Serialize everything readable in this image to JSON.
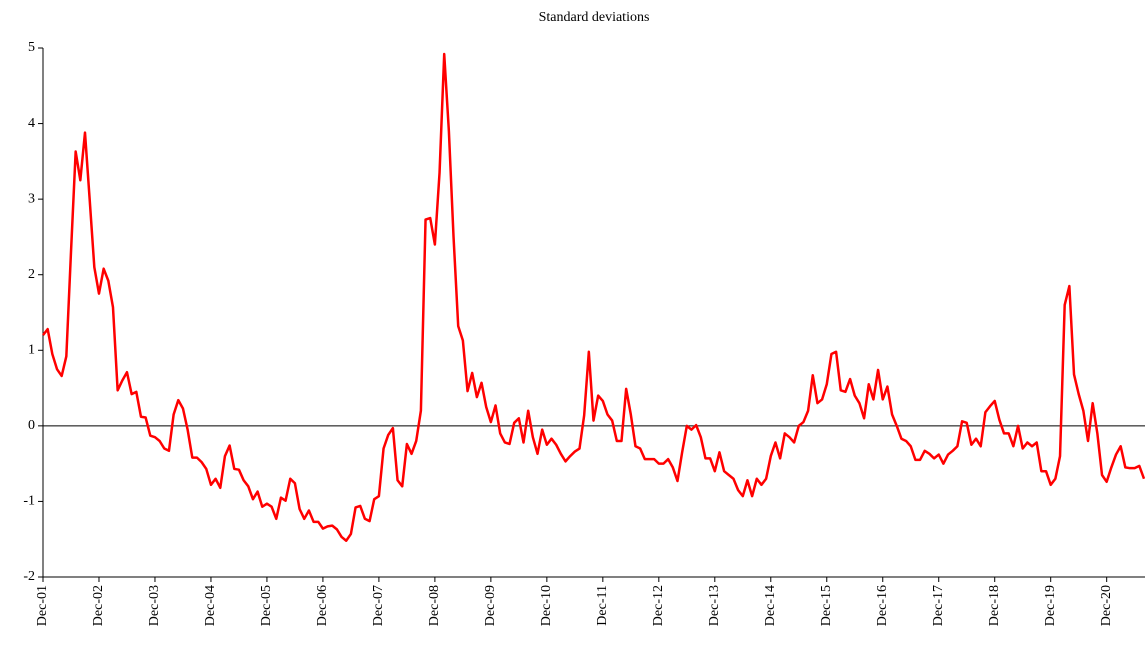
{
  "chart_data": {
    "type": "line",
    "title": "Standard deviations",
    "categories": [
      "Dec-01",
      null,
      null,
      null,
      null,
      null,
      null,
      null,
      null,
      null,
      null,
      null,
      "Dec-02",
      null,
      null,
      null,
      null,
      null,
      null,
      null,
      null,
      null,
      null,
      null,
      "Dec-03",
      null,
      null,
      null,
      null,
      null,
      null,
      null,
      null,
      null,
      null,
      null,
      "Dec-04",
      null,
      null,
      null,
      null,
      null,
      null,
      null,
      null,
      null,
      null,
      null,
      "Dec-05",
      null,
      null,
      null,
      null,
      null,
      null,
      null,
      null,
      null,
      null,
      null,
      "Dec-06",
      null,
      null,
      null,
      null,
      null,
      null,
      null,
      null,
      null,
      null,
      null,
      "Dec-07",
      null,
      null,
      null,
      null,
      null,
      null,
      null,
      null,
      null,
      null,
      null,
      "Dec-08",
      null,
      null,
      null,
      null,
      null,
      null,
      null,
      null,
      null,
      null,
      null,
      "Dec-09",
      null,
      null,
      null,
      null,
      null,
      null,
      null,
      null,
      null,
      null,
      null,
      "Dec-10",
      null,
      null,
      null,
      null,
      null,
      null,
      null,
      null,
      null,
      null,
      null,
      "Dec-11",
      null,
      null,
      null,
      null,
      null,
      null,
      null,
      null,
      null,
      null,
      null,
      "Dec-12",
      null,
      null,
      null,
      null,
      null,
      null,
      null,
      null,
      null,
      null,
      null,
      "Dec-13",
      null,
      null,
      null,
      null,
      null,
      null,
      null,
      null,
      null,
      null,
      null,
      "Dec-14",
      null,
      null,
      null,
      null,
      null,
      null,
      null,
      null,
      null,
      null,
      null,
      "Dec-15",
      null,
      null,
      null,
      null,
      null,
      null,
      null,
      null,
      null,
      null,
      null,
      "Dec-16",
      null,
      null,
      null,
      null,
      null,
      null,
      null,
      null,
      null,
      null,
      null,
      "Dec-17",
      null,
      null,
      null,
      null,
      null,
      null,
      null,
      null,
      null,
      null,
      null,
      "Dec-18",
      null,
      null,
      null,
      null,
      null,
      null,
      null,
      null,
      null,
      null,
      null,
      "Dec-19",
      null,
      null,
      null,
      null,
      null,
      null,
      null,
      null,
      null,
      null,
      null,
      "Dec-20",
      null,
      null,
      null,
      null,
      null,
      null,
      null,
      null
    ],
    "values": [
      1.2,
      1.28,
      0.95,
      0.75,
      0.66,
      0.92,
      2.3,
      3.63,
      3.25,
      3.88,
      3.0,
      2.1,
      1.75,
      2.08,
      1.92,
      1.57,
      0.47,
      0.6,
      0.71,
      0.42,
      0.45,
      0.12,
      0.11,
      -0.13,
      -0.15,
      -0.2,
      -0.3,
      -0.33,
      0.15,
      0.34,
      0.23,
      -0.05,
      -0.42,
      -0.42,
      -0.48,
      -0.57,
      -0.78,
      -0.7,
      -0.82,
      -0.4,
      -0.26,
      -0.57,
      -0.58,
      -0.72,
      -0.8,
      -0.97,
      -0.87,
      -1.07,
      -1.03,
      -1.07,
      -1.23,
      -0.95,
      -0.99,
      -0.7,
      -0.76,
      -1.1,
      -1.23,
      -1.12,
      -1.27,
      -1.27,
      -1.36,
      -1.33,
      -1.32,
      -1.37,
      -1.47,
      -1.52,
      -1.43,
      -1.08,
      -1.06,
      -1.23,
      -1.26,
      -0.97,
      -0.93,
      -0.3,
      -0.12,
      -0.03,
      -0.72,
      -0.8,
      -0.24,
      -0.37,
      -0.2,
      0.2,
      2.73,
      2.75,
      2.4,
      3.35,
      4.92,
      3.9,
      2.5,
      1.32,
      1.13,
      0.46,
      0.7,
      0.38,
      0.57,
      0.25,
      0.05,
      0.27,
      -0.1,
      -0.22,
      -0.24,
      0.04,
      0.1,
      -0.22,
      0.2,
      -0.15,
      -0.37,
      -0.05,
      -0.25,
      -0.17,
      -0.25,
      -0.37,
      -0.47,
      -0.4,
      -0.34,
      -0.3,
      0.14,
      0.98,
      0.07,
      0.4,
      0.33,
      0.15,
      0.07,
      -0.2,
      -0.2,
      0.49,
      0.15,
      -0.27,
      -0.3,
      -0.44,
      -0.44,
      -0.44,
      -0.5,
      -0.5,
      -0.44,
      -0.55,
      -0.73,
      -0.35,
      0.0,
      -0.05,
      0.01,
      -0.15,
      -0.43,
      -0.43,
      -0.6,
      -0.35,
      -0.6,
      -0.65,
      -0.7,
      -0.85,
      -0.93,
      -0.72,
      -0.93,
      -0.7,
      -0.78,
      -0.7,
      -0.4,
      -0.22,
      -0.43,
      -0.1,
      -0.15,
      -0.22,
      0.0,
      0.05,
      0.2,
      0.67,
      0.3,
      0.35,
      0.55,
      0.95,
      0.98,
      0.47,
      0.45,
      0.62,
      0.4,
      0.3,
      0.1,
      0.55,
      0.35,
      0.74,
      0.35,
      0.52,
      0.15,
      0.0,
      -0.17,
      -0.2,
      -0.27,
      -0.45,
      -0.45,
      -0.33,
      -0.37,
      -0.43,
      -0.38,
      -0.5,
      -0.38,
      -0.33,
      -0.27,
      0.06,
      0.04,
      -0.25,
      -0.17,
      -0.27,
      0.18,
      0.26,
      0.33,
      0.08,
      -0.1,
      -0.1,
      -0.27,
      0.0,
      -0.3,
      -0.22,
      -0.27,
      -0.22,
      -0.6,
      -0.6,
      -0.78,
      -0.7,
      -0.4,
      1.6,
      1.85,
      0.68,
      0.42,
      0.2,
      -0.2,
      0.3,
      -0.1,
      -0.65,
      -0.74,
      -0.55,
      -0.38,
      -0.27,
      -0.55,
      -0.56,
      -0.56,
      -0.53,
      -0.7
    ],
    "color": "#ff0000",
    "ylim": [
      -2,
      5
    ],
    "yticks": [
      -2,
      -1,
      0,
      1,
      2,
      3,
      4,
      5
    ]
  }
}
